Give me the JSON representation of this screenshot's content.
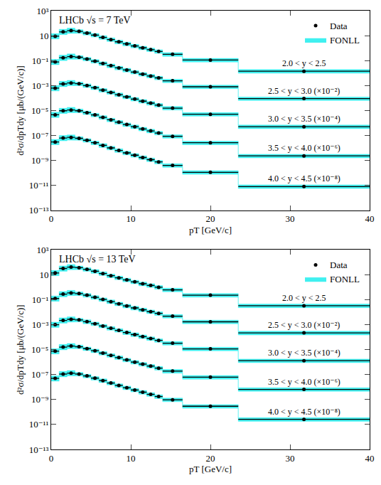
{
  "chart_data": [
    {
      "type": "scatter",
      "title": "LHCb √s = 7 TeV",
      "x_label": "pT [GeV/c]",
      "y_label": "d²σ/dpTdy [μb/(GeV/c)]",
      "log": "y",
      "grid": false,
      "legend": "upper right",
      "xlim": [
        0,
        40
      ],
      "xticks": [
        0,
        10,
        20,
        30,
        40
      ],
      "ylim": [
        1e-13,
        1000
      ],
      "yticks": [
        {
          "value": 1e-13,
          "label": "10⁻¹³"
        },
        {
          "value": 1e-11,
          "label": "10⁻¹¹"
        },
        {
          "value": 1e-09,
          "label": "10⁻⁹"
        },
        {
          "value": 1e-07,
          "label": "10⁻⁷"
        },
        {
          "value": 1e-05,
          "label": "10⁻⁵"
        },
        {
          "value": 0.001,
          "label": "10⁻³"
        },
        {
          "value": 0.1,
          "label": "10⁻¹"
        },
        10,
        {
          "value": 1000,
          "label": "10³"
        }
      ],
      "x": [
        0.5,
        1.5,
        2.5,
        3.5,
        4.5,
        5.5,
        6.5,
        7.5,
        8.5,
        9.5,
        10.5,
        11.5,
        12.5,
        13.5,
        15.25,
        20,
        31.75
      ],
      "bins": [
        0,
        1,
        2,
        3,
        4,
        5,
        6,
        7,
        8,
        9,
        10,
        11,
        12,
        13,
        14,
        16.5,
        23.5,
        40
      ],
      "series": [
        {
          "name": "Data",
          "color": "#000000",
          "marker": "circle",
          "groups": [
            {
              "label": "2.0 < y < 2.5",
              "values": [
                9,
                20,
                25,
                22,
                16,
                11,
                7.2,
                4.8,
                3.2,
                2.2,
                1.5,
                1.05,
                0.75,
                0.54,
                0.32,
                0.11,
                0.014
              ]
            },
            {
              "label": "2.5 < y < 3.0 (×10⁻²)",
              "values": [
                0.078,
                0.17,
                0.21,
                0.185,
                0.135,
                0.09,
                0.059,
                0.039,
                0.026,
                0.0175,
                0.012,
                0.0082,
                0.0058,
                0.0041,
                0.0024,
                0.0008,
                9e-05
              ]
            },
            {
              "label": "3.0 < y < 3.5 (×10⁻⁴)",
              "values": [
                0.00062,
                0.00135,
                0.0016,
                0.0014,
                0.001,
                0.00067,
                0.00043,
                0.00028,
                0.000185,
                0.000123,
                8.2e-05,
                5.6e-05,
                3.9e-05,
                2.7e-05,
                1.55e-05,
                5e-06,
                5e-07
              ]
            },
            {
              "label": "3.5 < y < 4.0 (×10⁻⁶)",
              "values": [
                4.5e-06,
                9.5e-06,
                1.1e-05,
                9.5e-06,
                6.7e-06,
                4.4e-06,
                2.8e-06,
                1.8e-06,
                1.15e-06,
                7.5e-07,
                5e-07,
                3.3e-07,
                2.3e-07,
                1.55e-07,
                8.5e-08,
                2.6e-08,
                2.3e-09
              ]
            },
            {
              "label": "4.0 < y < 4.5 (×10⁻⁸)",
              "values": [
                3e-08,
                6.2e-08,
                7e-08,
                5.9e-08,
                4.1e-08,
                2.6e-08,
                1.6e-08,
                1e-08,
                6.3e-09,
                4e-09,
                2.6e-09,
                1.7e-09,
                1.15e-09,
                7.6e-10,
                4e-10,
                1.1e-10,
                8e-12
              ]
            }
          ]
        },
        {
          "name": "FONLL",
          "type": "band",
          "color": "#40f0f0",
          "groups": [
            {
              "low": [
                5.4,
                12,
                15,
                15.4,
                11.2,
                7.7,
                5.0,
                3.4,
                2.2,
                1.5,
                1.05,
                0.74,
                0.53,
                0.38,
                0.22,
                0.077,
                0.0098
              ],
              "high": [
                14.4,
                32,
                40,
                29.7,
                21.6,
                14.9,
                9.7,
                6.5,
                4.3,
                3.0,
                2.0,
                1.4,
                1.0,
                0.73,
                0.43,
                0.15,
                0.019
              ]
            },
            {
              "low": [
                0.047,
                0.1,
                0.126,
                0.13,
                0.095,
                0.063,
                0.041,
                0.027,
                0.018,
                0.012,
                0.0084,
                0.0057,
                0.0041,
                0.0029,
                0.0017,
                0.00056,
                6.3e-05
              ],
              "high": [
                0.125,
                0.27,
                0.34,
                0.25,
                0.18,
                0.12,
                0.08,
                0.053,
                0.035,
                0.024,
                0.016,
                0.011,
                0.0078,
                0.0055,
                0.0032,
                0.00108,
                0.00012
              ]
            },
            {
              "low": [
                0.00037,
                0.00081,
                0.00096,
                0.00098,
                0.0007,
                0.00047,
                0.0003,
                0.0002,
                0.00013,
                8.6e-05,
                5.7e-05,
                3.9e-05,
                2.7e-05,
                1.9e-05,
                1.1e-05,
                3.5e-06,
                3.5e-07
              ],
              "high": [
                0.00099,
                0.0022,
                0.0026,
                0.0019,
                0.00135,
                0.0009,
                0.00058,
                0.00038,
                0.00025,
                0.000166,
                0.00011,
                7.6e-05,
                5.3e-05,
                3.6e-05,
                2.1e-05,
                6.8e-06,
                6.8e-07
              ]
            },
            {
              "low": [
                2.7e-06,
                5.7e-06,
                6.6e-06,
                6.6e-06,
                4.7e-06,
                3.1e-06,
                2e-06,
                1.26e-06,
                8e-07,
                5.2e-07,
                3.5e-07,
                2.3e-07,
                1.6e-07,
                1.1e-07,
                6e-08,
                1.8e-08,
                1.6e-09
              ],
              "high": [
                7.2e-06,
                1.5e-05,
                1.8e-05,
                1.3e-05,
                9e-06,
                5.9e-06,
                3.8e-06,
                2.4e-06,
                1.55e-06,
                1e-06,
                6.8e-07,
                4.5e-07,
                3.1e-07,
                2.1e-07,
                1.15e-07,
                3.5e-08,
                3.1e-09
              ]
            },
            {
              "low": [
                1.8e-08,
                3.7e-08,
                4.2e-08,
                4.1e-08,
                2.9e-08,
                1.8e-08,
                1.1e-08,
                7e-09,
                4.4e-09,
                2.8e-09,
                1.8e-09,
                1.2e-09,
                8e-10,
                5.3e-10,
                2.8e-10,
                7.7e-11,
                5.6e-12
              ],
              "high": [
                4.8e-08,
                9.9e-08,
                1.1e-07,
                8e-08,
                5.5e-08,
                3.5e-08,
                2.2e-08,
                1.35e-08,
                8.5e-09,
                5.4e-09,
                3.5e-09,
                2.3e-09,
                1.55e-09,
                1e-09,
                5.4e-10,
                1.5e-10,
                1.1e-11
              ]
            }
          ]
        }
      ]
    },
    {
      "type": "scatter",
      "title": "LHCb √s = 13 TeV",
      "x_label": "pT [GeV/c]",
      "y_label": "d²σ/dpTdy [μb/(GeV/c)]",
      "log": "y",
      "grid": false,
      "legend": "upper right",
      "xlim": [
        0,
        40
      ],
      "xticks": [
        0,
        10,
        20,
        30,
        40
      ],
      "ylim": [
        1e-13,
        1000
      ],
      "yticks": [
        {
          "value": 1e-13,
          "label": "10⁻¹³"
        },
        {
          "value": 1e-11,
          "label": "10⁻¹¹"
        },
        {
          "value": 1e-09,
          "label": "10⁻⁹"
        },
        {
          "value": 1e-07,
          "label": "10⁻⁷"
        },
        {
          "value": 1e-05,
          "label": "10⁻⁵"
        },
        {
          "value": 0.001,
          "label": "10⁻³"
        },
        {
          "value": 0.1,
          "label": "10⁻¹"
        },
        10,
        {
          "value": 1000,
          "label": "10³"
        }
      ],
      "x": [
        0.5,
        1.5,
        2.5,
        3.5,
        4.5,
        5.5,
        6.5,
        7.5,
        8.5,
        9.5,
        10.5,
        11.5,
        12.5,
        13.5,
        15.25,
        20,
        31.75
      ],
      "bins": [
        0,
        1,
        2,
        3,
        4,
        5,
        6,
        7,
        8,
        9,
        10,
        11,
        12,
        13,
        14,
        16.5,
        23.5,
        40
      ],
      "series": [
        {
          "name": "Data",
          "color": "#000000",
          "marker": "circle",
          "groups": [
            {
              "label": "2.0 < y < 2.5",
              "values": [
                14,
                32,
                41,
                37,
                27,
                19,
                12.5,
                8.4,
                5.7,
                3.9,
                2.7,
                1.9,
                1.4,
                1.0,
                0.62,
                0.23,
                0.033
              ]
            },
            {
              "label": "2.5 < y < 3.0 (×10⁻²)",
              "values": [
                0.125,
                0.28,
                0.35,
                0.31,
                0.23,
                0.155,
                0.105,
                0.07,
                0.047,
                0.032,
                0.022,
                0.0155,
                0.011,
                0.008,
                0.0048,
                0.0017,
                0.00022
              ]
            },
            {
              "label": "3.0 < y < 3.5 (×10⁻⁴)",
              "values": [
                0.001,
                0.0022,
                0.0027,
                0.0024,
                0.00175,
                0.0012,
                0.00078,
                0.00052,
                0.00035,
                0.000235,
                0.00016,
                0.00011,
                7.8e-05,
                5.5e-05,
                3.3e-05,
                1.15e-05,
                1.3e-06
              ]
            },
            {
              "label": "3.5 < y < 4.0 (×10⁻⁶)",
              "values": [
                7.5e-06,
                1.6e-05,
                1.95e-05,
                1.7e-05,
                1.2e-05,
                8.2e-06,
                5.3e-06,
                3.5e-06,
                2.3e-06,
                1.5e-06,
                1e-06,
                6.9e-07,
                4.8e-07,
                3.3e-07,
                1.9e-07,
                6.2e-08,
                6.5e-09
              ]
            },
            {
              "label": "4.0 < y < 4.5 (×10⁻⁸)",
              "values": [
                5e-08,
                1.1e-07,
                1.3e-07,
                1.1e-07,
                7.8e-08,
                5.2e-08,
                3.3e-08,
                2.1e-08,
                1.35e-08,
                8.8e-09,
                5.8e-09,
                3.9e-09,
                2.6e-09,
                1.75e-09,
                9.5e-10,
                2.9e-10,
                2.6e-11
              ]
            }
          ]
        },
        {
          "name": "FONLL",
          "type": "band",
          "color": "#40f0f0",
          "groups": [
            {
              "low": [
                8.4,
                19,
                25,
                26,
                19,
                13,
                8.8,
                5.9,
                4.0,
                2.7,
                1.9,
                1.3,
                0.98,
                0.7,
                0.43,
                0.16,
                0.023
              ],
              "high": [
                22,
                51,
                66,
                50,
                36,
                26,
                17,
                11.3,
                7.7,
                5.3,
                3.6,
                2.6,
                1.9,
                1.35,
                0.84,
                0.31,
                0.045
              ]
            },
            {
              "low": [
                0.075,
                0.17,
                0.21,
                0.22,
                0.16,
                0.11,
                0.074,
                0.049,
                0.033,
                0.022,
                0.015,
                0.011,
                0.0077,
                0.0056,
                0.0034,
                0.0012,
                0.00015
              ],
              "high": [
                0.2,
                0.45,
                0.56,
                0.42,
                0.31,
                0.21,
                0.14,
                0.095,
                0.063,
                0.043,
                0.03,
                0.021,
                0.015,
                0.0108,
                0.0065,
                0.0023,
                0.0003
              ]
            },
            {
              "low": [
                0.0006,
                0.0013,
                0.0016,
                0.0017,
                0.0012,
                0.00084,
                0.00055,
                0.00036,
                0.00025,
                0.00016,
                0.00011,
                7.7e-05,
                5.5e-05,
                3.9e-05,
                2.3e-05,
                8e-06,
                9.1e-07
              ],
              "high": [
                0.0016,
                0.0035,
                0.0043,
                0.0032,
                0.0024,
                0.0016,
                0.00105,
                0.0007,
                0.00047,
                0.00032,
                0.00022,
                0.00015,
                0.000105,
                7.4e-05,
                4.5e-05,
                1.55e-05,
                1.75e-06
              ]
            },
            {
              "low": [
                4.5e-06,
                9.6e-06,
                1.2e-05,
                1.2e-05,
                8.4e-06,
                5.7e-06,
                3.7e-06,
                2.45e-06,
                1.6e-06,
                1.05e-06,
                7e-07,
                4.8e-07,
                3.4e-07,
                2.3e-07,
                1.3e-07,
                4.3e-08,
                4.6e-09
              ],
              "high": [
                1.2e-05,
                2.6e-05,
                3.1e-05,
                2.3e-05,
                1.6e-05,
                1.1e-05,
                7.2e-06,
                4.7e-06,
                3.1e-06,
                2e-06,
                1.35e-06,
                9.3e-07,
                6.5e-07,
                4.5e-07,
                2.6e-07,
                8.4e-08,
                8.8e-09
              ]
            },
            {
              "low": [
                3e-08,
                6.6e-08,
                7.8e-08,
                7.7e-08,
                5.5e-08,
                3.6e-08,
                2.3e-08,
                1.5e-08,
                9.5e-09,
                6.2e-09,
                4.1e-09,
                2.7e-09,
                1.8e-09,
                1.2e-09,
                6.7e-10,
                2e-10,
                1.8e-11
              ],
              "high": [
                8e-08,
                1.8e-07,
                2.1e-07,
                1.5e-07,
                1.05e-07,
                7e-08,
                4.5e-08,
                2.8e-08,
                1.8e-08,
                1.2e-08,
                7.8e-09,
                5.3e-09,
                3.5e-09,
                2.4e-09,
                1.3e-09,
                3.9e-10,
                3.5e-11
              ]
            }
          ]
        }
      ]
    }
  ]
}
